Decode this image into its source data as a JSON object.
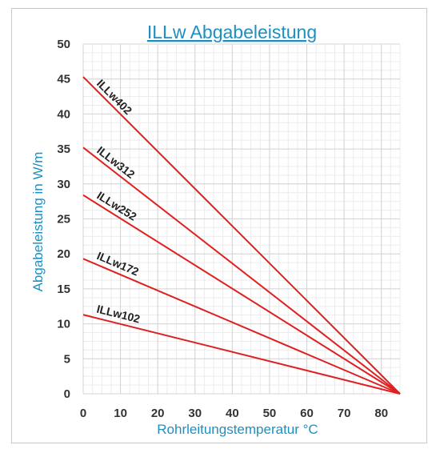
{
  "chart_data": {
    "type": "line",
    "title": "ILLw Abgabeleistung",
    "xlabel": "Rohrleitungstemperatur °C",
    "ylabel": "Abgabeleistung in W/m",
    "xlim": [
      0,
      85
    ],
    "ylim": [
      0,
      50
    ],
    "x_ticks": [
      0,
      10,
      20,
      30,
      40,
      50,
      60,
      70,
      80
    ],
    "y_ticks": [
      0,
      5,
      10,
      15,
      20,
      25,
      30,
      35,
      40,
      45,
      50
    ],
    "grid": true,
    "line_color": "#e02020",
    "series": [
      {
        "name": "ILLw402",
        "x": [
          0,
          85
        ],
        "y": [
          45.3,
          0
        ]
      },
      {
        "name": "ILLw312",
        "x": [
          0,
          85
        ],
        "y": [
          35.2,
          0
        ]
      },
      {
        "name": "ILLw252",
        "x": [
          0,
          85
        ],
        "y": [
          28.4,
          0
        ]
      },
      {
        "name": "ILLw172",
        "x": [
          0,
          85
        ],
        "y": [
          19.3,
          0
        ]
      },
      {
        "name": "ILLw102",
        "x": [
          0,
          85
        ],
        "y": [
          11.3,
          0
        ]
      }
    ]
  }
}
